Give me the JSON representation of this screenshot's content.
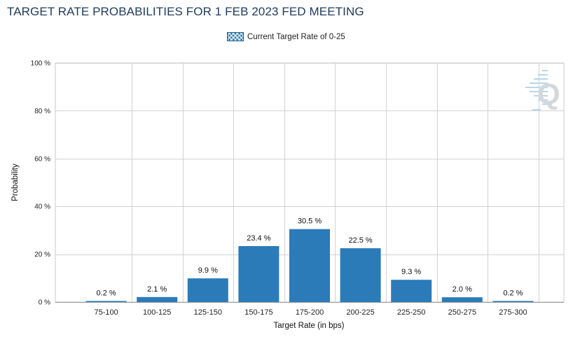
{
  "chart_data": {
    "type": "bar",
    "title": "TARGET RATE PROBABILITIES FOR 1 FEB 2023 FED MEETING",
    "legend": [
      "Current Target Rate of 0-25"
    ],
    "legend_position": "top-center",
    "xlabel": "Target Rate (in bps)",
    "ylabel": "Probability",
    "ylim": [
      0,
      100
    ],
    "yticks": [
      "0 %",
      "20 %",
      "40 %",
      "60 %",
      "80 %",
      "100 %"
    ],
    "grid": true,
    "bar_color": "#2b7bb9",
    "categories": [
      "75-100",
      "100-125",
      "125-150",
      "150-175",
      "175-200",
      "200-225",
      "225-250",
      "250-275",
      "275-300"
    ],
    "values": [
      0.2,
      2.1,
      9.9,
      23.4,
      30.5,
      22.5,
      9.3,
      2.0,
      0.2
    ],
    "data_labels": [
      "0.2 %",
      "2.1 %",
      "9.9 %",
      "23.4 %",
      "30.5 %",
      "22.5 %",
      "9.3 %",
      "2.0 %",
      "0.2 %"
    ]
  },
  "watermark": "Q"
}
